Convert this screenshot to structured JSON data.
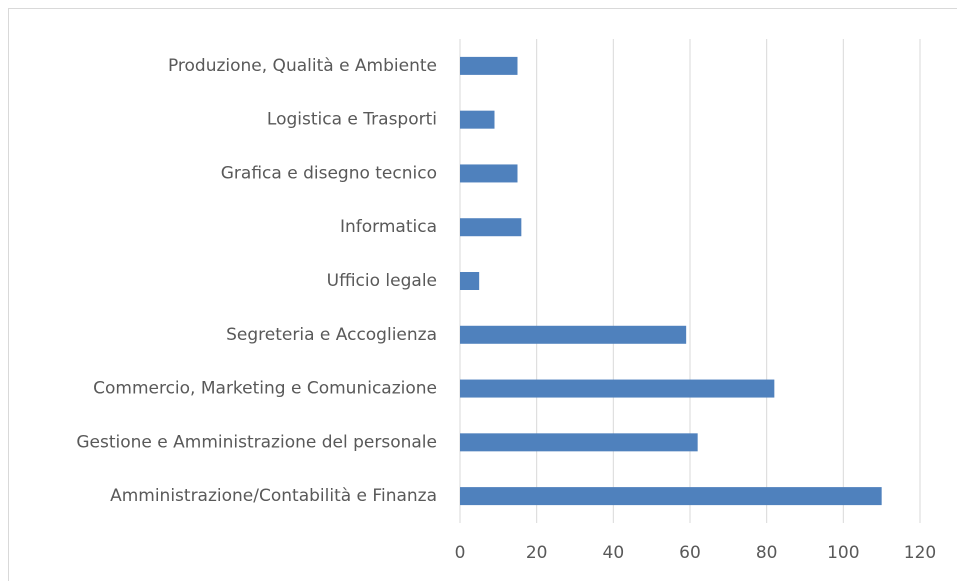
{
  "chart_data": {
    "type": "hbar",
    "categories": [
      "Produzione, Qualità e Ambiente",
      "Logistica e Trasporti",
      "Grafica e disegno tecnico",
      "Informatica",
      "Ufficio legale",
      "Segreteria e Accoglienza",
      "Commercio, Marketing e Comunicazione",
      "Gestione e Amministrazione del personale",
      "Amministrazione/Contabilità e Finanza"
    ],
    "values": [
      15,
      9,
      15,
      16,
      5,
      59,
      82,
      62,
      110
    ],
    "color": "#4f81bd",
    "xlim": [
      0,
      120
    ],
    "xticks": [
      0,
      20,
      40,
      60,
      80,
      100,
      120
    ],
    "grid": true
  }
}
